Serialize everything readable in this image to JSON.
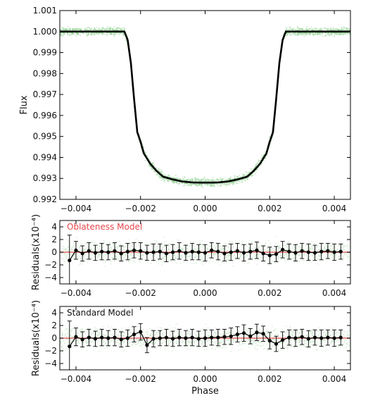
{
  "chart_data": [
    {
      "type": "scatter",
      "panel": "lightcurve",
      "title": "",
      "xlabel": "",
      "ylabel": "Flux",
      "xlim": [
        -0.0045,
        0.0045
      ],
      "ylim": [
        0.992,
        1.001
      ],
      "xticks": [
        -0.004,
        -0.002,
        0.0,
        0.002,
        0.004
      ],
      "xtick_labels": [
        "−0.004",
        "−0.002",
        "0.000",
        "0.002",
        "0.004"
      ],
      "yticks": [
        0.992,
        0.993,
        0.994,
        0.995,
        0.996,
        0.997,
        0.998,
        0.999,
        1.0,
        1.001
      ],
      "ytick_labels": [
        "0.992",
        "0.993",
        "0.994",
        "0.995",
        "0.996",
        "0.997",
        "0.998",
        "0.999",
        "1.000",
        "1.001"
      ],
      "grid": false,
      "colors": {
        "points": "#8fcf8f",
        "model": "#000000"
      },
      "series": [
        {
          "kind": "model-line",
          "x": [
            -0.0045,
            -0.0025,
            -0.0024,
            -0.0023,
            -0.0022,
            -0.0021,
            -0.002,
            -0.0019,
            -0.0017,
            -0.0015,
            -0.0013,
            -0.001,
            -0.0007,
            -0.0004,
            -0.0002,
            0.0,
            0.0002,
            0.0004,
            0.0007,
            0.001,
            0.0013,
            0.0015,
            0.0017,
            0.0019,
            0.002,
            0.0021,
            0.0022,
            0.0023,
            0.0024,
            0.0025,
            0.0045
          ],
          "y": [
            1.0,
            1.0,
            0.9996,
            0.9985,
            0.9968,
            0.9952,
            0.99475,
            0.9942,
            0.9937,
            0.99335,
            0.99308,
            0.99295,
            0.99285,
            0.99281,
            0.9928,
            0.9928,
            0.9928,
            0.99281,
            0.99285,
            0.99295,
            0.99308,
            0.99335,
            0.9937,
            0.9942,
            0.99475,
            0.9952,
            0.9968,
            0.9985,
            0.9996,
            1.0,
            1.0
          ]
        }
      ]
    },
    {
      "type": "scatter",
      "panel": "residuals-oblateness",
      "title": "Oblateness Model",
      "xlabel": "",
      "ylabel": "Residuals(x10⁻⁴)",
      "xlim": [
        -0.0045,
        0.0045
      ],
      "ylim": [
        -5,
        5
      ],
      "xticks": [
        -0.004,
        -0.002,
        0.0,
        0.002,
        0.004
      ],
      "xtick_labels": [
        "−0.004",
        "−0.002",
        "0.000",
        "0.002",
        "0.004"
      ],
      "yticks": [
        -4,
        -2,
        0,
        2,
        4
      ],
      "ytick_labels": [
        "−4",
        "−2",
        "0",
        "2",
        "4"
      ],
      "grid": false,
      "colors": {
        "title": "#e8474c",
        "points": "#a9d9a9",
        "model": "#e86a6a",
        "binned": "#000000"
      },
      "binned": {
        "x": [
          -0.0042,
          -0.004,
          -0.0038,
          -0.0036,
          -0.0034,
          -0.0032,
          -0.003,
          -0.0028,
          -0.0026,
          -0.0024,
          -0.0022,
          -0.002,
          -0.0018,
          -0.0016,
          -0.0014,
          -0.0012,
          -0.001,
          -0.0008,
          -0.0006,
          -0.0004,
          -0.0002,
          0.0,
          0.0002,
          0.0004,
          0.0006,
          0.0008,
          0.001,
          0.0012,
          0.0014,
          0.0016,
          0.0018,
          0.002,
          0.0022,
          0.0024,
          0.0026,
          0.0028,
          0.003,
          0.0032,
          0.0034,
          0.0036,
          0.0038,
          0.004,
          0.0042
        ],
        "y": [
          -1.3,
          0.3,
          -0.2,
          0.2,
          -0.1,
          0.1,
          0.0,
          0.2,
          -0.2,
          0.1,
          0.3,
          0.2,
          -0.1,
          0.0,
          0.1,
          -0.2,
          0.0,
          0.2,
          -0.1,
          0.1,
          0.0,
          -0.1,
          0.3,
          0.1,
          -0.2,
          0.0,
          0.2,
          -0.1,
          0.1,
          0.3,
          -0.2,
          -0.5,
          -0.3,
          0.4,
          0.1,
          -0.1,
          0.2,
          0.0,
          -0.1,
          0.1,
          0.2,
          0.0,
          0.1
        ],
        "err": [
          4.0,
          1.4,
          1.2,
          1.3,
          1.2,
          1.3,
          1.2,
          1.3,
          1.2,
          1.3,
          1.2,
          1.3,
          1.2,
          1.3,
          1.2,
          1.3,
          1.2,
          1.3,
          1.2,
          1.3,
          1.2,
          1.3,
          1.2,
          1.3,
          1.2,
          1.3,
          1.2,
          1.3,
          1.2,
          1.3,
          1.2,
          1.3,
          1.2,
          1.3,
          1.2,
          1.3,
          1.2,
          1.3,
          1.2,
          1.3,
          1.2,
          1.3,
          1.2
        ]
      }
    },
    {
      "type": "scatter",
      "panel": "residuals-standard",
      "title": "Standard Model",
      "xlabel": "Phase",
      "ylabel": "Residuals(x10⁻⁴)",
      "xlim": [
        -0.0045,
        0.0045
      ],
      "ylim": [
        -5,
        5
      ],
      "xticks": [
        -0.004,
        -0.002,
        0.0,
        0.002,
        0.004
      ],
      "xtick_labels": [
        "−0.004",
        "−0.002",
        "0.000",
        "0.002",
        "0.004"
      ],
      "yticks": [
        -4,
        -2,
        0,
        2,
        4
      ],
      "ytick_labels": [
        "−4",
        "−2",
        "0",
        "2",
        "4"
      ],
      "grid": false,
      "colors": {
        "title": "#111111",
        "points": "#a9d9a9",
        "model": "#e86a6a",
        "binned": "#000000"
      },
      "binned": {
        "x": [
          -0.0042,
          -0.004,
          -0.0038,
          -0.0036,
          -0.0034,
          -0.0032,
          -0.003,
          -0.0028,
          -0.0026,
          -0.0024,
          -0.0022,
          -0.002,
          -0.0018,
          -0.0016,
          -0.0014,
          -0.0012,
          -0.001,
          -0.0008,
          -0.0006,
          -0.0004,
          -0.0002,
          0.0,
          0.0002,
          0.0004,
          0.0006,
          0.0008,
          0.001,
          0.0012,
          0.0014,
          0.0016,
          0.0018,
          0.002,
          0.0022,
          0.0024,
          0.0026,
          0.0028,
          0.003,
          0.0032,
          0.0034,
          0.0036,
          0.0038,
          0.004,
          0.0042
        ],
        "y": [
          -1.3,
          0.2,
          -0.2,
          0.1,
          -0.1,
          0.1,
          0.0,
          0.1,
          -0.2,
          0.0,
          0.6,
          1.0,
          -1.1,
          -0.1,
          0.0,
          0.1,
          -0.1,
          0.1,
          0.0,
          0.1,
          -0.1,
          0.0,
          0.1,
          0.1,
          0.2,
          0.3,
          0.6,
          0.8,
          0.3,
          0.9,
          0.7,
          -0.4,
          -0.9,
          -0.3,
          0.1,
          0.0,
          0.2,
          -0.1,
          0.1,
          0.0,
          0.1,
          0.0,
          0.1
        ],
        "err": [
          4.0,
          1.4,
          1.2,
          1.3,
          1.2,
          1.3,
          1.2,
          1.3,
          1.2,
          1.3,
          1.2,
          1.3,
          1.2,
          1.3,
          1.2,
          1.3,
          1.2,
          1.3,
          1.2,
          1.3,
          1.2,
          1.3,
          1.2,
          1.3,
          1.2,
          1.3,
          1.2,
          1.3,
          1.2,
          1.3,
          1.2,
          1.3,
          1.2,
          1.3,
          1.2,
          1.3,
          1.2,
          1.3,
          1.2,
          1.3,
          1.2,
          1.3,
          1.2
        ]
      }
    }
  ]
}
